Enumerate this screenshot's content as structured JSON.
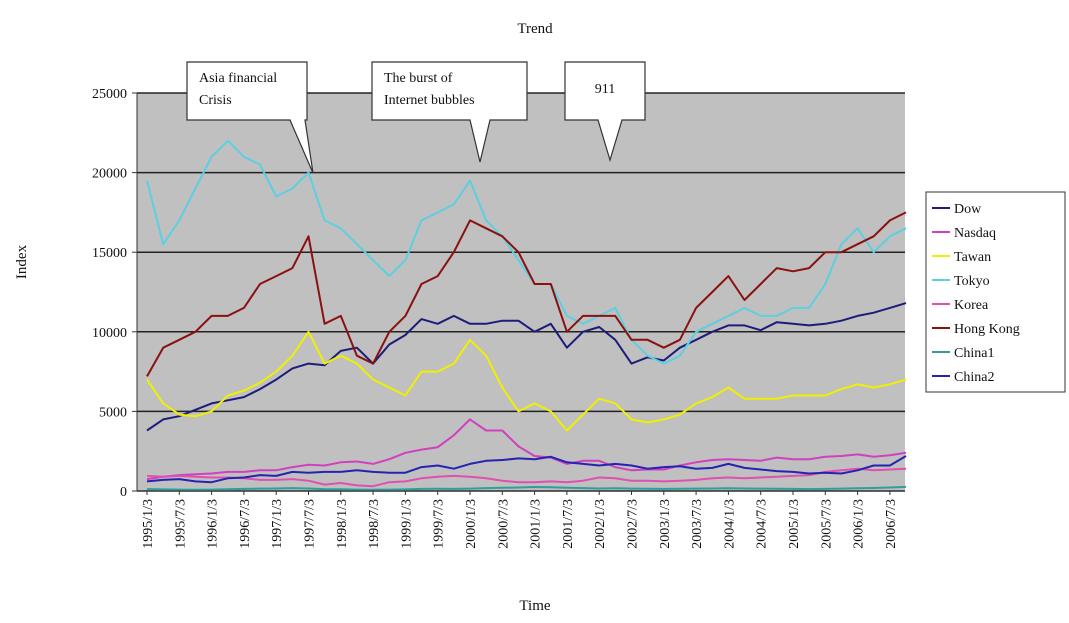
{
  "chart_data": {
    "type": "line",
    "title": "Trend",
    "xlabel": "Time",
    "ylabel": "Index",
    "categories": [
      "1995/1/3",
      null,
      "1995/7/3",
      null,
      "1996/1/3",
      null,
      "1996/7/3",
      null,
      "1997/1/3",
      null,
      "1997/7/3",
      null,
      "1998/1/3",
      null,
      "1998/7/3",
      null,
      "1999/1/3",
      null,
      "1999/7/3",
      null,
      "2000/1/3",
      null,
      "2000/7/3",
      null,
      "2001/1/3",
      null,
      "2001/7/3",
      null,
      "2002/1/3",
      null,
      "2002/7/3",
      null,
      "2003/1/3",
      null,
      "2003/7/3",
      null,
      "2004/1/3",
      null,
      "2004/7/3",
      null,
      "2005/1/3",
      null,
      "2005/7/3",
      null,
      "2006/1/3",
      null,
      "2006/7/3",
      null
    ],
    "ylim": [
      0,
      25000
    ],
    "yticks": [
      0,
      5000,
      10000,
      15000,
      20000,
      25000
    ],
    "grid": true,
    "legend": "right",
    "series": [
      {
        "name": "Dow",
        "color": "#1c1c7a",
        "values": [
          3800,
          4500,
          4700,
          5100,
          5500,
          5700,
          5900,
          6400,
          7000,
          7700,
          8000,
          7900,
          8800,
          9000,
          8000,
          9200,
          9800,
          10800,
          10500,
          11000,
          10500,
          10500,
          10700,
          10700,
          10000,
          10500,
          9000,
          10000,
          10300,
          9500,
          8000,
          8400,
          8200,
          9000,
          9500,
          10000,
          10400,
          10400,
          10100,
          10600,
          10500,
          10400,
          10500,
          10700,
          11000,
          11200,
          11500,
          11800
        ]
      },
      {
        "name": "Nasdaq",
        "color": "#d040c0",
        "values": [
          750,
          900,
          1000,
          1050,
          1100,
          1200,
          1200,
          1300,
          1300,
          1500,
          1650,
          1600,
          1800,
          1850,
          1700,
          2000,
          2400,
          2600,
          2750,
          3500,
          4500,
          3800,
          3800,
          2800,
          2200,
          2100,
          1700,
          1900,
          1900,
          1500,
          1300,
          1350,
          1350,
          1600,
          1800,
          1950,
          2000,
          1950,
          1900,
          2100,
          2000,
          2000,
          2150,
          2200,
          2300,
          2150,
          2250,
          2400
        ]
      },
      {
        "name": "Tawan",
        "color": "#f0f000",
        "values": [
          7000,
          5500,
          4800,
          4700,
          5000,
          6000,
          6300,
          6800,
          7500,
          8500,
          10000,
          8000,
          8500,
          8000,
          7000,
          6500,
          6000,
          7500,
          7500,
          8000,
          9500,
          8500,
          6500,
          5000,
          5500,
          5000,
          3800,
          4800,
          5800,
          5500,
          4500,
          4300,
          4500,
          4800,
          5500,
          5900,
          6500,
          5800,
          5800,
          5800,
          6000,
          6000,
          6000,
          6400,
          6700,
          6500,
          6700,
          7000
        ]
      },
      {
        "name": "Tokyo",
        "color": "#5ccfe0",
        "values": [
          19500,
          15500,
          17000,
          19000,
          21000,
          22000,
          21000,
          20500,
          18500,
          19000,
          20000,
          17000,
          16500,
          15500,
          14500,
          13500,
          14500,
          17000,
          17500,
          18000,
          19500,
          17000,
          16000,
          14500,
          13000,
          13000,
          11000,
          10500,
          11000,
          11500,
          9500,
          8500,
          8000,
          8500,
          10000,
          10500,
          11000,
          11500,
          11000,
          11000,
          11500,
          11500,
          13000,
          15500,
          16500,
          15000,
          16000,
          16500
        ]
      },
      {
        "name": "Korea",
        "color": "#e050b0",
        "values": [
          950,
          900,
          950,
          900,
          850,
          850,
          800,
          700,
          700,
          750,
          650,
          400,
          500,
          350,
          300,
          550,
          600,
          800,
          900,
          950,
          900,
          800,
          650,
          550,
          550,
          600,
          550,
          650,
          850,
          800,
          650,
          650,
          600,
          650,
          700,
          800,
          850,
          800,
          850,
          900,
          950,
          1000,
          1200,
          1300,
          1400,
          1300,
          1350,
          1400
        ]
      },
      {
        "name": "Hong Kong",
        "color": "#8b1010",
        "values": [
          7200,
          9000,
          9500,
          10000,
          11000,
          11000,
          11500,
          13000,
          13500,
          14000,
          16000,
          10500,
          11000,
          8500,
          8000,
          10000,
          11000,
          13000,
          13500,
          15000,
          17000,
          16500,
          16000,
          15000,
          13000,
          13000,
          10000,
          11000,
          11000,
          11000,
          9500,
          9500,
          9000,
          9500,
          11500,
          12500,
          13500,
          12000,
          13000,
          14000,
          13800,
          14000,
          15000,
          15000,
          15500,
          16000,
          17000,
          17500
        ]
      },
      {
        "name": "China1",
        "color": "#2e9e9e",
        "values": [
          120,
          100,
          90,
          80,
          90,
          110,
          130,
          150,
          160,
          180,
          160,
          120,
          110,
          90,
          80,
          90,
          100,
          130,
          140,
          130,
          150,
          180,
          200,
          220,
          250,
          240,
          200,
          180,
          160,
          170,
          150,
          140,
          130,
          140,
          150,
          160,
          170,
          160,
          150,
          140,
          130,
          120,
          130,
          150,
          170,
          190,
          220,
          260
        ]
      },
      {
        "name": "China2",
        "color": "#2424b0",
        "values": [
          600,
          700,
          750,
          600,
          550,
          800,
          850,
          1000,
          950,
          1200,
          1150,
          1200,
          1200,
          1300,
          1200,
          1150,
          1150,
          1500,
          1600,
          1400,
          1700,
          1900,
          1950,
          2050,
          2000,
          2150,
          1800,
          1700,
          1600,
          1700,
          1600,
          1400,
          1500,
          1550,
          1400,
          1450,
          1700,
          1450,
          1350,
          1250,
          1200,
          1100,
          1150,
          1100,
          1300,
          1600,
          1600,
          2200
        ]
      }
    ],
    "annotations": [
      {
        "lines": [
          "Asia financial",
          "Crisis"
        ]
      },
      {
        "lines": [
          "The burst of",
          "Internet bubbles"
        ]
      },
      {
        "lines": [
          "911"
        ]
      }
    ]
  }
}
